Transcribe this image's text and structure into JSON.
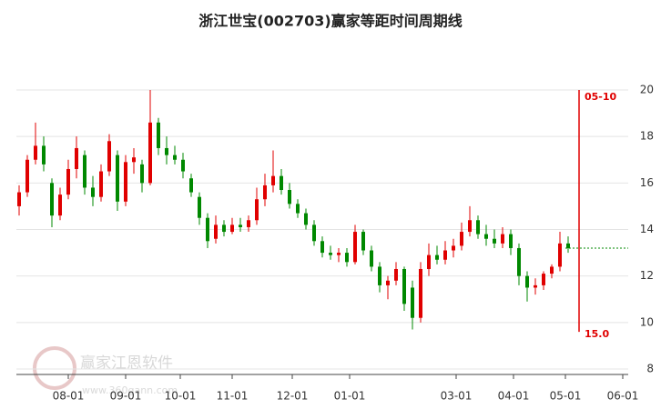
{
  "chart_data": {
    "type": "candlestick",
    "title": "浙江世宝(002703)赢家等距时间周期线",
    "watermark": "赢家江恩软件",
    "watermark_url": "www.360gann.com",
    "up_color": "#e00000",
    "down_color": "#008800",
    "x": [
      1,
      4,
      7,
      10,
      13,
      16,
      19,
      22,
      25,
      28,
      31,
      34,
      37,
      40,
      43,
      46,
      49,
      52,
      55,
      58,
      61,
      64,
      67,
      70,
      73,
      76,
      79,
      82,
      85,
      88,
      91,
      94,
      97,
      100,
      103,
      106,
      109,
      112,
      115,
      118,
      121,
      124,
      127,
      130,
      133,
      136,
      139,
      142,
      145,
      148,
      151,
      154,
      157,
      160,
      163,
      166,
      169,
      172,
      175,
      178,
      181,
      184,
      187,
      190,
      193,
      196,
      199,
      202
    ],
    "open": [
      15.0,
      15.6,
      17.0,
      17.6,
      16.0,
      14.6,
      15.5,
      16.6,
      17.2,
      15.8,
      15.4,
      16.5,
      17.2,
      15.2,
      16.9,
      16.8,
      16.0,
      18.6,
      17.5,
      17.2,
      17.0,
      16.2,
      15.4,
      14.5,
      13.6,
      14.2,
      13.9,
      14.2,
      14.1,
      14.4,
      15.3,
      15.9,
      16.3,
      15.7,
      15.1,
      14.7,
      14.2,
      13.5,
      13.0,
      12.9,
      13.0,
      12.6,
      13.9,
      13.1,
      12.4,
      11.6,
      11.8,
      12.3,
      11.5,
      10.2,
      12.3,
      12.9,
      12.7,
      13.1,
      13.3,
      13.9,
      14.4,
      13.8,
      13.6,
      13.4,
      13.8,
      13.2,
      12.0,
      11.5,
      11.6,
      12.1,
      12.4,
      13.4
    ],
    "high": [
      15.9,
      17.2,
      18.6,
      18.0,
      16.2,
      15.8,
      17.0,
      18.0,
      17.4,
      16.3,
      16.8,
      18.1,
      17.4,
      17.2,
      17.5,
      17.0,
      20.0,
      18.8,
      18.0,
      17.6,
      17.3,
      16.4,
      15.6,
      14.7,
      14.6,
      14.4,
      14.5,
      14.5,
      14.6,
      15.8,
      16.4,
      17.4,
      16.6,
      16.0,
      15.3,
      14.9,
      14.4,
      13.7,
      13.3,
      13.2,
      13.2,
      14.2,
      14.0,
      13.3,
      12.6,
      12.0,
      12.6,
      12.4,
      11.8,
      12.6,
      13.4,
      13.3,
      13.5,
      13.6,
      14.3,
      15.0,
      14.6,
      14.2,
      14.0,
      14.1,
      14.0,
      13.4,
      12.2,
      11.9,
      12.2,
      12.5,
      13.9,
      13.7
    ],
    "low": [
      14.6,
      15.4,
      16.8,
      16.5,
      14.1,
      14.4,
      15.3,
      16.2,
      15.5,
      15.0,
      15.2,
      16.3,
      14.8,
      15.0,
      16.4,
      15.6,
      15.9,
      17.2,
      16.8,
      16.8,
      16.2,
      15.4,
      14.2,
      13.2,
      13.4,
      13.7,
      13.8,
      13.9,
      13.9,
      14.2,
      15.0,
      15.6,
      15.5,
      14.9,
      14.5,
      14.0,
      13.3,
      12.8,
      12.7,
      12.6,
      12.4,
      12.5,
      12.9,
      12.2,
      11.3,
      11.0,
      11.6,
      10.5,
      9.7,
      10.0,
      12.0,
      12.5,
      12.5,
      12.8,
      13.1,
      13.7,
      13.6,
      13.3,
      13.2,
      13.2,
      12.9,
      11.6,
      10.9,
      11.2,
      11.4,
      11.9,
      12.2,
      13.0
    ],
    "close": [
      15.6,
      17.0,
      17.6,
      16.8,
      14.6,
      15.5,
      16.6,
      17.5,
      15.8,
      15.4,
      16.5,
      17.8,
      15.2,
      16.9,
      17.1,
      16.0,
      18.6,
      17.5,
      17.2,
      17.0,
      16.5,
      15.6,
      14.5,
      13.5,
      14.2,
      13.9,
      14.2,
      14.1,
      14.4,
      15.3,
      15.9,
      16.3,
      15.7,
      15.1,
      14.7,
      14.2,
      13.5,
      13.0,
      12.9,
      13.0,
      12.6,
      13.9,
      13.1,
      12.4,
      11.6,
      11.8,
      12.3,
      10.8,
      10.2,
      12.3,
      12.9,
      12.7,
      13.1,
      13.3,
      13.9,
      14.4,
      13.8,
      13.6,
      13.4,
      13.8,
      13.2,
      12.0,
      11.5,
      11.6,
      12.1,
      12.4,
      13.4,
      13.2
    ],
    "xlim": [
      0,
      224
    ],
    "xticks": [
      {
        "value": 19,
        "label": "08-01"
      },
      {
        "value": 40,
        "label": "09-01"
      },
      {
        "value": 60,
        "label": "10-01"
      },
      {
        "value": 79,
        "label": "11-01"
      },
      {
        "value": 101,
        "label": "12-01"
      },
      {
        "value": 122,
        "label": "01-01"
      },
      {
        "value": 161,
        "label": "03-01"
      },
      {
        "value": 182,
        "label": "04-01"
      },
      {
        "value": 201,
        "label": "05-01"
      },
      {
        "value": 222,
        "label": "06-01"
      }
    ],
    "ylim": [
      8,
      20
    ],
    "yticks": [
      8,
      10,
      12,
      14,
      16,
      18,
      20
    ],
    "grid": true,
    "cycle_line": {
      "x": 206,
      "label": "05-10",
      "top": 20,
      "bottom": 9.6,
      "bottom_label": {
        "value": 15,
        "label": "15.0"
      },
      "color": "#e00000"
    },
    "price_line": {
      "value": 13.2,
      "x_start": 201,
      "color": "#008800"
    }
  }
}
